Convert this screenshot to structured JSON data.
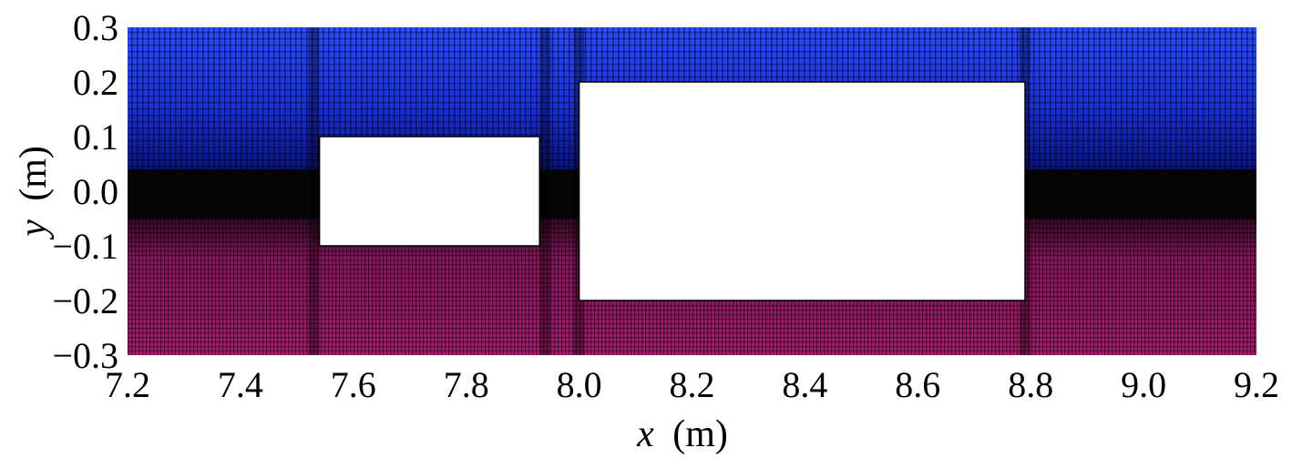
{
  "chart_data": {
    "type": "heatmap",
    "title": "",
    "xlabel": {
      "symbol": "x",
      "unit": "(m)"
    },
    "ylabel": {
      "symbol": "y",
      "unit": "(m)"
    },
    "xlim": [
      7.2,
      9.2
    ],
    "ylim": [
      -0.3,
      0.3
    ],
    "xticks": [
      "7.2",
      "7.4",
      "7.6",
      "7.8",
      "8.0",
      "8.2",
      "8.4",
      "8.6",
      "8.8",
      "9.0",
      "9.2"
    ],
    "yticks": [
      "0.3",
      "0.2",
      "0.1",
      "0.0",
      "−0.1",
      "−0.2",
      "−0.3"
    ],
    "ytick_values": [
      0.3,
      0.2,
      0.1,
      0.0,
      -0.1,
      -0.2,
      -0.3
    ],
    "grid": false,
    "regions": [
      {
        "name": "upper-mesh",
        "color": "#1a3aff",
        "y_range": [
          0.04,
          0.3
        ]
      },
      {
        "name": "middle-band",
        "color": "#050505",
        "y_range": [
          -0.05,
          0.04
        ]
      },
      {
        "name": "lower-mesh",
        "color": "#a01a6a",
        "y_range": [
          -0.3,
          -0.05
        ]
      }
    ],
    "obstacles": [
      {
        "name": "small-block",
        "x_range": [
          7.54,
          7.93
        ],
        "y_range": [
          -0.1,
          0.1
        ],
        "color": "#ffffff"
      },
      {
        "name": "large-block",
        "x_range": [
          8.0,
          8.79
        ],
        "y_range": [
          -0.2,
          0.2
        ],
        "color": "#ffffff"
      }
    ],
    "dense_columns_x": [
      7.53,
      7.94,
      8.0,
      8.79
    ]
  }
}
